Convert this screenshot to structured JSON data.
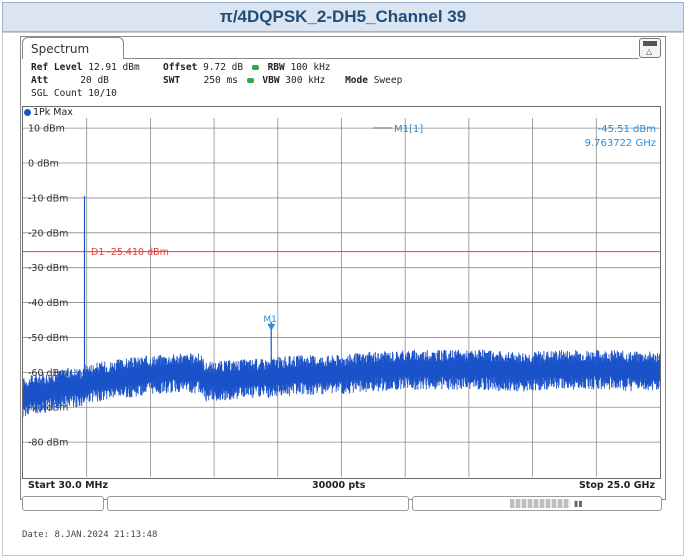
{
  "header": {
    "title": "π/4DQPSK_2-DH5_Channel 39"
  },
  "tab": {
    "label": "Spectrum"
  },
  "params": {
    "ref_level_label": "Ref Level",
    "ref_level": "12.91 dBm",
    "offset_label": "Offset",
    "offset": "9.72 dB",
    "rbw_label": "RBW",
    "rbw": "100 kHz",
    "att_label": "Att",
    "att": "20 dB",
    "swt_label": "SWT",
    "swt": "250 ms",
    "vbw_label": "VBW",
    "vbw": "300 kHz",
    "mode_label": "Mode",
    "mode": "Sweep",
    "sgl_count": "SGL Count 10/10"
  },
  "trace": {
    "label": "1Pk Max",
    "color": "#1a52c9"
  },
  "marker": {
    "label": "M1[1]",
    "level": "-45.51 dBm",
    "freq": "9.763722 GHz",
    "tag": "M1",
    "x_ghz": 9.763722,
    "y_dbm": -45.51,
    "color": "#2b8fd6"
  },
  "limit_line": {
    "label": "D1  -25.410 dBm",
    "value": -25.41,
    "color": "#e04040"
  },
  "footer": {
    "start": "Start 30.0 MHz",
    "points": "30000 pts",
    "stop": "Stop 25.0 GHz",
    "date": "Date: 8.JAN.2024  21:13:48"
  },
  "chart_data": {
    "type": "line",
    "x_unit": "GHz",
    "y_unit": "dBm",
    "xlim": [
      0.03,
      25.0
    ],
    "ylim": [
      -90,
      12.91
    ],
    "y_ticks": [
      10,
      0,
      -10,
      -20,
      -30,
      -40,
      -50,
      -60,
      -70,
      -80
    ],
    "y_tick_labels": [
      "10 dBm",
      "0 dBm",
      "-10 dBm",
      "-20 dBm",
      "-30 dBm",
      "-40 dBm",
      "-50 dBm",
      "-60 dBm",
      "-70 dBm",
      "-80 dBm"
    ],
    "grid": true,
    "series": [
      {
        "name": "1Pk Max",
        "x": [
          0.03,
          0.5,
          1.0,
          1.5,
          2.0,
          2.44,
          2.5,
          3.0,
          3.5,
          4.0,
          5.0,
          6.0,
          7.0,
          7.2,
          8.0,
          9.0,
          9.76,
          10.0,
          11.0,
          12.0,
          13.0,
          14.0,
          15.0,
          16.0,
          17.0,
          18.0,
          19.0,
          20.0,
          21.0,
          22.0,
          23.0,
          24.0,
          25.0
        ],
        "y": [
          -67.5,
          -66.5,
          -66.0,
          -65.0,
          -64.5,
          -9.5,
          -63.5,
          -63.0,
          -62.5,
          -62.0,
          -61.0,
          -60.5,
          -60.5,
          -63.0,
          -62.5,
          -62.0,
          -45.51,
          -61.5,
          -61.0,
          -61.0,
          -60.5,
          -60.0,
          -59.5,
          -59.5,
          -59.5,
          -59.5,
          -60.0,
          -60.0,
          -59.5,
          -59.5,
          -59.5,
          -60.0,
          -60.0
        ]
      }
    ]
  }
}
